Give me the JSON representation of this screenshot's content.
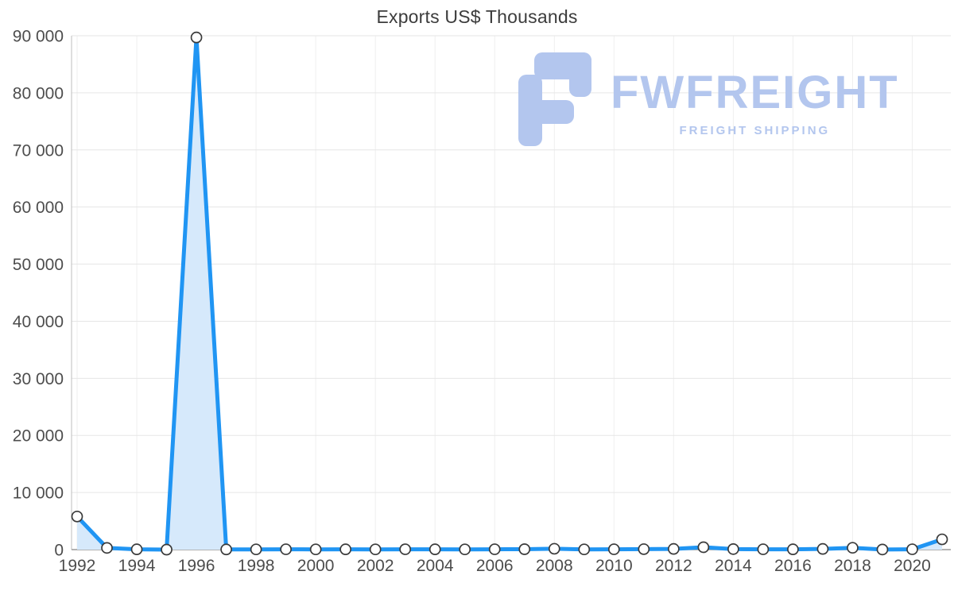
{
  "chart": {
    "title": "Exports US$ Thousands"
  },
  "watermark": {
    "brand": "FWFREIGHT",
    "tagline": "FREIGHT SHIPPING",
    "color": "#b3c6ee"
  },
  "chart_data": {
    "type": "area",
    "title": "Exports US$ Thousands",
    "x": [
      1992,
      1993,
      1994,
      1995,
      1996,
      1997,
      1998,
      1999,
      2000,
      2001,
      2002,
      2003,
      2004,
      2005,
      2006,
      2007,
      2008,
      2009,
      2010,
      2011,
      2012,
      2013,
      2014,
      2015,
      2016,
      2017,
      2018,
      2019,
      2020,
      2021
    ],
    "values": [
      5800,
      300,
      50,
      0,
      89700,
      30,
      40,
      60,
      40,
      50,
      40,
      60,
      50,
      40,
      60,
      70,
      150,
      40,
      60,
      80,
      120,
      420,
      90,
      60,
      50,
      120,
      320,
      20,
      60,
      1800
    ],
    "xlabel": "",
    "ylabel": "",
    "ylim": [
      0,
      90000
    ],
    "ytick_values": [
      0,
      10000,
      20000,
      30000,
      40000,
      50000,
      60000,
      70000,
      80000,
      90000
    ],
    "ytick_labels": [
      "0",
      "10 000",
      "20 000",
      "30 000",
      "40 000",
      "50 000",
      "60 000",
      "70 000",
      "80 000",
      "90 000"
    ],
    "xtick_years": [
      1992,
      1994,
      1996,
      1998,
      2000,
      2002,
      2004,
      2006,
      2008,
      2010,
      2012,
      2014,
      2016,
      2018,
      2020
    ],
    "xtick_labels": [
      "1992",
      "1994",
      "1996",
      "1998",
      "2000",
      "2002",
      "2004",
      "2006",
      "2008",
      "2010",
      "2012",
      "2014",
      "2016",
      "2018",
      "2020"
    ],
    "grid": true,
    "legend": "none",
    "line_color": "#2095f3",
    "fill_color": "#d6e9fb",
    "marker_fill": "#ffffff",
    "marker_stroke": "#3a3a3a",
    "grid_color": "#e6e6e6",
    "axis_color": "#9a9a9a",
    "tick_label_color": "#4d4d4d"
  }
}
